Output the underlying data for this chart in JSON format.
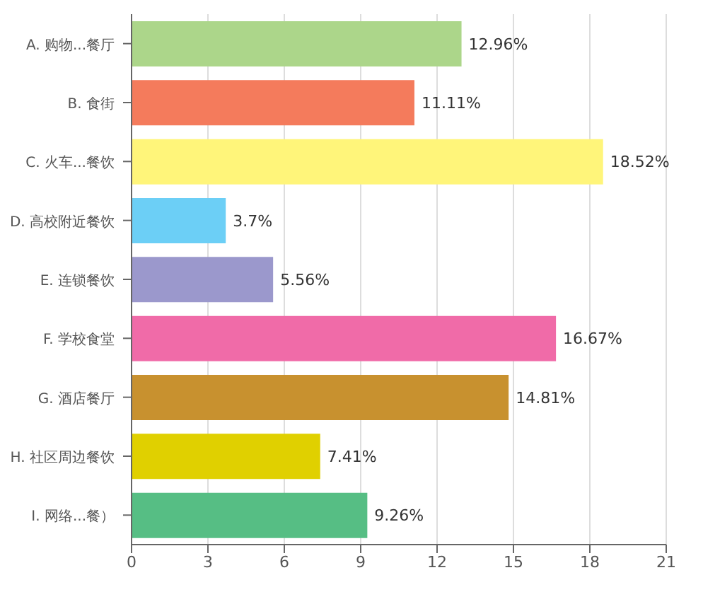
{
  "chart_data": {
    "type": "bar",
    "orientation": "horizontal",
    "categories": [
      "A. 购物...餐厅",
      "B. 食街",
      "C. 火车...餐饮",
      "D. 高校附近餐饮",
      "E. 连锁餐饮",
      "F. 学校食堂",
      "G. 酒店餐厅",
      "H. 社区周边餐饮",
      "I. 网络...餐）"
    ],
    "values": [
      12.96,
      11.11,
      18.52,
      3.7,
      5.56,
      16.67,
      14.81,
      7.41,
      9.26
    ],
    "value_labels": [
      "12.96%",
      "11.11%",
      "18.52%",
      "3.7%",
      "5.56%",
      "16.67%",
      "14.81%",
      "7.41%",
      "9.26%"
    ],
    "colors": [
      "#acd68a",
      "#f47b5c",
      "#fff57a",
      "#6ccff6",
      "#9b98cc",
      "#f06ba8",
      "#c8912f",
      "#e0d000",
      "#56be84"
    ],
    "xlim": [
      0,
      21
    ],
    "xticks": [
      0,
      3,
      6,
      9,
      12,
      15,
      18,
      21
    ],
    "grid": "x"
  }
}
